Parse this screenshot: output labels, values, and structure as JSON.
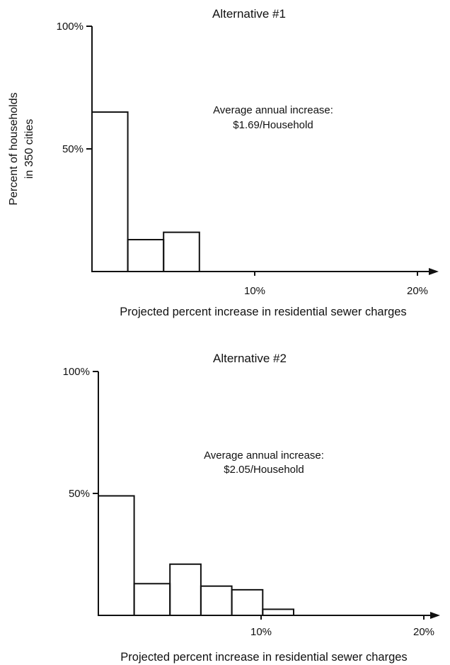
{
  "chart_data": [
    {
      "type": "bar",
      "title": "Alternative #1",
      "xlabel": "Projected percent increase in residential sewer charges",
      "ylabel_lines": [
        "Percent of households",
        "in 350 cities"
      ],
      "ylim": [
        0,
        100
      ],
      "yticks": [
        {
          "value": 50,
          "label": "50%"
        },
        {
          "value": 100,
          "label": "100%"
        }
      ],
      "xlim": [
        0,
        20
      ],
      "xticks": [
        {
          "value": 10,
          "label": "10%"
        },
        {
          "value": 20,
          "label": "20%"
        }
      ],
      "bins": [
        {
          "x0": 0,
          "x1": 2.2,
          "value": 65
        },
        {
          "x0": 2.2,
          "x1": 4.4,
          "value": 13
        },
        {
          "x0": 4.4,
          "x1": 6.6,
          "value": 16
        }
      ],
      "annotation": [
        "Average annual increase:",
        "$1.69/Household"
      ],
      "grid": false
    },
    {
      "type": "bar",
      "title": "Alternative #2",
      "xlabel": "Projected percent increase in residential sewer charges",
      "ylim": [
        0,
        100
      ],
      "yticks": [
        {
          "value": 50,
          "label": "50%"
        },
        {
          "value": 100,
          "label": "100%"
        }
      ],
      "xlim": [
        0,
        20
      ],
      "xticks": [
        {
          "value": 10,
          "label": "10%"
        },
        {
          "value": 20,
          "label": "20%"
        }
      ],
      "bins": [
        {
          "x0": 0,
          "x1": 2.2,
          "value": 49
        },
        {
          "x0": 2.2,
          "x1": 4.4,
          "value": 13
        },
        {
          "x0": 4.4,
          "x1": 6.3,
          "value": 21
        },
        {
          "x0": 6.3,
          "x1": 8.2,
          "value": 12
        },
        {
          "x0": 8.2,
          "x1": 10.1,
          "value": 10.5
        },
        {
          "x0": 10.1,
          "x1": 12.0,
          "value": 2.5
        }
      ],
      "annotation": [
        "Average annual increase:",
        "$2.05/Household"
      ],
      "grid": false
    }
  ]
}
